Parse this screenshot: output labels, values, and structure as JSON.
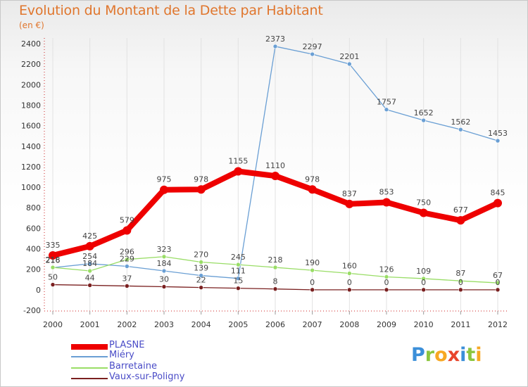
{
  "title": "Evolution du Montant de la Dette par Habitant",
  "unit_label": "(en €)",
  "logo": {
    "text": "Proxiti",
    "letters": [
      {
        "ch": "P",
        "color": "#3b8fd9"
      },
      {
        "ch": "r",
        "color": "#8cc63f"
      },
      {
        "ch": "o",
        "color": "#f7a823"
      },
      {
        "ch": "x",
        "color": "#e8452c"
      },
      {
        "ch": "i",
        "color": "#3b8fd9"
      },
      {
        "ch": "t",
        "color": "#8cc63f"
      },
      {
        "ch": "i",
        "color": "#f7a823"
      }
    ]
  },
  "chart_data": {
    "type": "line",
    "title": "Evolution du Montant de la Dette par Habitant",
    "ylabel": "(en €)",
    "xlabel": "",
    "x": [
      "2000",
      "2001",
      "2002",
      "2003",
      "2004",
      "2005",
      "2006",
      "2007",
      "2008",
      "2009",
      "2010",
      "2011",
      "2012"
    ],
    "ylim": [
      -200,
      2400
    ],
    "yticks": [
      "-200",
      "0",
      "200",
      "400",
      "600",
      "800",
      "1000",
      "1200",
      "1400",
      "1600",
      "1800",
      "2000",
      "2200",
      "2400"
    ],
    "legend_position": "bottom-left",
    "series": [
      {
        "name": "PLASNE",
        "color": "#ee0000",
        "width": 8,
        "values": [
          335,
          425,
          579,
          975,
          978,
          1155,
          1110,
          978,
          837,
          853,
          750,
          677,
          845
        ],
        "labels": [
          "335",
          "425",
          "579",
          "975",
          "978",
          "1155",
          "1110",
          "978",
          "837",
          "853",
          "750",
          "677",
          "845"
        ]
      },
      {
        "name": "Miéry",
        "color": "#6a9fd4",
        "width": 1.3,
        "values": [
          216,
          254,
          229,
          184,
          139,
          111,
          2373,
          2297,
          2201,
          1757,
          1652,
          1562,
          1453
        ],
        "labels": [
          "216",
          "254",
          "229",
          "184",
          "139",
          "111",
          "2373",
          "2297",
          "2201",
          "1757",
          "1652",
          "1562",
          "1453"
        ]
      },
      {
        "name": "Barretaine",
        "color": "#99dd66",
        "width": 1.3,
        "values": [
          218,
          184,
          296,
          323,
          270,
          245,
          218,
          190,
          160,
          126,
          109,
          87,
          67
        ],
        "labels": [
          "218",
          "184",
          "296",
          "323",
          "270",
          "245",
          "218",
          "190",
          "160",
          "126",
          "109",
          "87",
          "67"
        ]
      },
      {
        "name": "Vaux-sur-Poligny",
        "color": "#7a2020",
        "width": 1.3,
        "values": [
          50,
          44,
          37,
          30,
          22,
          15,
          8,
          0,
          0,
          0,
          0,
          0,
          0
        ],
        "labels": [
          "50",
          "44",
          "37",
          "30",
          "22",
          "15",
          "8",
          "0",
          "0",
          "0",
          "0",
          "0",
          "0"
        ]
      }
    ]
  }
}
